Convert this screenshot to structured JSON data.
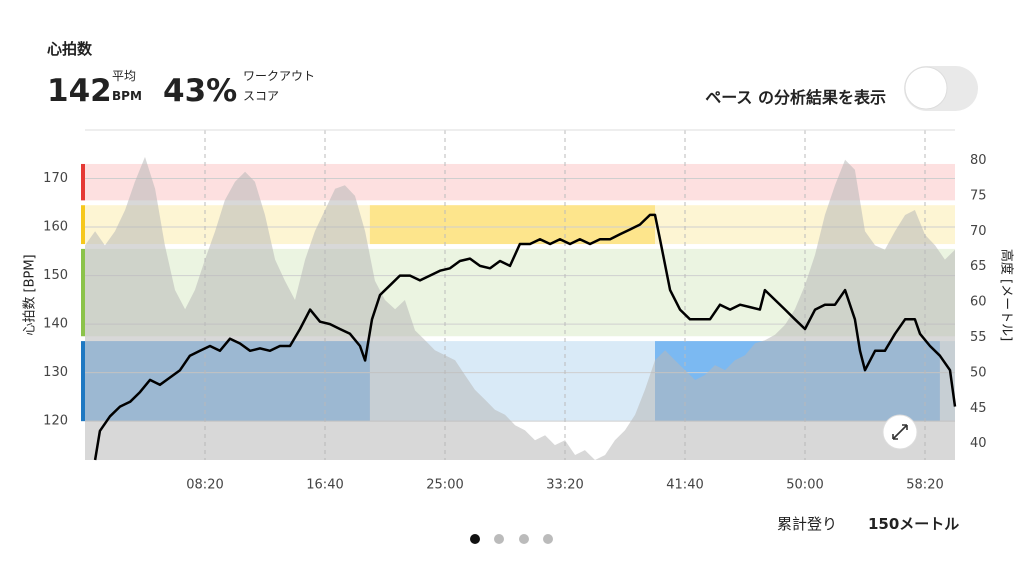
{
  "header": {
    "title": "心拍数",
    "avg_value": "142",
    "avg_label_1": "平均",
    "avg_label_2": "BPM",
    "score_value": "43%",
    "score_label_1": "ワークアウト",
    "score_label_2": "スコア",
    "toggle_label": "ペース の分析結果を表示"
  },
  "footer": {
    "ascent_label": "累計登り",
    "ascent_value": "150メートル"
  },
  "chart_data": {
    "type": "line",
    "ylabel": "心拍数 [BPM]",
    "y2label": "高度 [メートル]",
    "xlim": [
      0,
      3625
    ],
    "xticks": [
      {
        "value": 500,
        "label": "08:20"
      },
      {
        "value": 1000,
        "label": "16:40"
      },
      {
        "value": 1500,
        "label": "25:00"
      },
      {
        "value": 2000,
        "label": "33:20"
      },
      {
        "value": 2500,
        "label": "41:40"
      },
      {
        "value": 3000,
        "label": "50:00"
      },
      {
        "value": 3500,
        "label": "58:20"
      }
    ],
    "ylim": [
      112,
      180
    ],
    "yticks": [
      120,
      130,
      140,
      150,
      160,
      170
    ],
    "y2lim": [
      37.7,
      84.3
    ],
    "y2ticks": [
      40,
      45,
      50,
      55,
      60,
      65,
      70,
      75,
      80
    ],
    "grid": true,
    "zones": [
      {
        "from": 120,
        "to": 136.5,
        "color": "#d9eaf7",
        "bar": "#1e78c2",
        "highlight": "#7bb9f2"
      },
      {
        "from": 137.5,
        "to": 155.5,
        "color": "#ebf4e1",
        "bar": "#8bc34a",
        "highlight": "#cfe6b4"
      },
      {
        "from": 156.5,
        "to": 164.5,
        "color": "#fdf5d3",
        "bar": "#f6c81c",
        "highlight": "#fde58c"
      },
      {
        "from": 165.5,
        "to": 173,
        "color": "#fde0e0",
        "bar": "#e53935",
        "highlight": "#f8b4b4"
      }
    ],
    "highlights": [
      {
        "zone": 0,
        "x": [
          0,
          1187
        ]
      },
      {
        "zone": 2,
        "x": [
          1187,
          2375
        ]
      },
      {
        "zone": 0,
        "x": [
          2375,
          3562
        ]
      }
    ],
    "series": [
      {
        "name": "高度",
        "axis": "y2",
        "color": "#b8b8b8",
        "x": [
          0,
          42,
          83,
          125,
          167,
          208,
          250,
          292,
          333,
          375,
          417,
          458,
          500,
          542,
          583,
          625,
          667,
          708,
          750,
          792,
          833,
          875,
          917,
          958,
          1000,
          1042,
          1083,
          1125,
          1167,
          1208,
          1250,
          1292,
          1333,
          1375,
          1417,
          1458,
          1500,
          1542,
          1583,
          1625,
          1667,
          1708,
          1750,
          1792,
          1833,
          1875,
          1917,
          1958,
          2000,
          2042,
          2083,
          2125,
          2167,
          2208,
          2250,
          2292,
          2333,
          2375,
          2417,
          2458,
          2500,
          2542,
          2583,
          2625,
          2667,
          2708,
          2750,
          2792,
          2833,
          2875,
          2917,
          2958,
          3000,
          3042,
          3083,
          3125,
          3167,
          3208,
          3250,
          3292,
          3333,
          3375,
          3417,
          3458,
          3500,
          3542,
          3583,
          3625
        ],
        "values": [
          68,
          70,
          68,
          70,
          73,
          77,
          80.5,
          76,
          68,
          61.7,
          59,
          61.7,
          66,
          70,
          74.4,
          77,
          78.4,
          77,
          72.3,
          66,
          63,
          60.3,
          66,
          70,
          73,
          76,
          76.5,
          75,
          70,
          63,
          60.3,
          59,
          60.3,
          56,
          54.6,
          53.2,
          52.5,
          51.8,
          49.7,
          47.6,
          46.2,
          44.8,
          44.1,
          42.6,
          41.9,
          40.5,
          41.2,
          39.8,
          40.5,
          38.4,
          39.1,
          37.7,
          38.4,
          40.5,
          41.9,
          44.1,
          47.6,
          51.8,
          53.2,
          51.8,
          50.4,
          49,
          49.7,
          51.1,
          50.4,
          51.8,
          52.5,
          54.2,
          54.6,
          55.4,
          56.8,
          59,
          62.4,
          66.7,
          72.3,
          76.5,
          80.1,
          78.7,
          70,
          68,
          67.4,
          70,
          72.3,
          73,
          69.5,
          68,
          66,
          67.4
        ]
      },
      {
        "name": "心拍数",
        "color": "#000000",
        "x": [
          42,
          62,
          104,
          146,
          188,
          229,
          271,
          312,
          354,
          396,
          437,
          479,
          521,
          562,
          604,
          646,
          688,
          729,
          771,
          812,
          854,
          896,
          938,
          979,
          1021,
          1062,
          1104,
          1146,
          1167,
          1196,
          1229,
          1271,
          1312,
          1354,
          1396,
          1437,
          1479,
          1521,
          1562,
          1604,
          1646,
          1688,
          1729,
          1771,
          1812,
          1854,
          1896,
          1938,
          1979,
          2021,
          2062,
          2104,
          2146,
          2188,
          2229,
          2271,
          2312,
          2354,
          2375,
          2396,
          2438,
          2479,
          2521,
          2562,
          2604,
          2646,
          2688,
          2729,
          2771,
          2812,
          2833,
          2875,
          2917,
          2958,
          3000,
          3042,
          3083,
          3125,
          3167,
          3208,
          3229,
          3250,
          3292,
          3333,
          3375,
          3417,
          3458,
          3479,
          3521,
          3562,
          3604,
          3625
        ],
        "values": [
          112,
          118,
          121,
          123,
          124,
          126,
          128.5,
          127.5,
          129,
          130.5,
          133.5,
          134.5,
          135.5,
          134.5,
          137,
          136,
          134.5,
          135,
          134.5,
          135.5,
          135.5,
          139,
          143,
          140.5,
          140,
          139,
          138,
          135.5,
          132.5,
          141,
          146,
          148,
          150,
          150,
          149,
          150,
          151,
          151.5,
          153,
          153.5,
          152,
          151.5,
          153,
          152,
          156.5,
          156.5,
          157.5,
          156.5,
          157.5,
          156.5,
          157.5,
          156.5,
          157.5,
          157.5,
          158.5,
          159.5,
          160.5,
          162.5,
          162.5,
          157.5,
          147,
          143,
          141,
          141,
          141,
          144,
          143,
          144,
          143.5,
          143,
          147,
          145,
          143,
          141,
          139,
          143,
          144,
          144,
          147,
          141,
          134.5,
          130.5,
          134.5,
          134.5,
          138,
          141,
          141,
          138,
          135.5,
          133.5,
          130.5,
          123
        ]
      }
    ]
  }
}
